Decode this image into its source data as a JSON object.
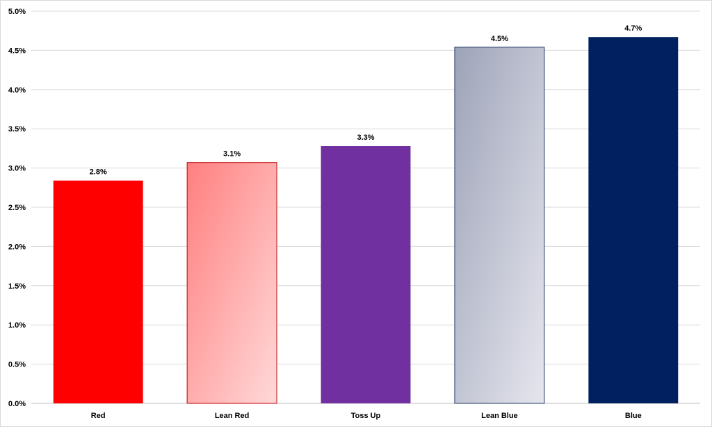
{
  "chart_data": {
    "type": "bar",
    "title": "",
    "xlabel": "",
    "ylabel": "",
    "ylim": [
      0,
      5
    ],
    "ytick_step": 0.5,
    "y_format": "percent_one_decimal",
    "grid": true,
    "legend": "none",
    "categories": [
      "Red",
      "Lean Red",
      "Toss Up",
      "Lean Blue",
      "Blue"
    ],
    "values": [
      2.84,
      3.07,
      3.28,
      4.54,
      4.67
    ],
    "data_labels": [
      "2.8%",
      "3.1%",
      "3.3%",
      "4.5%",
      "4.7%"
    ],
    "yticks": [
      "0.0%",
      "0.5%",
      "1.0%",
      "1.5%",
      "2.0%",
      "2.5%",
      "3.0%",
      "3.5%",
      "4.0%",
      "4.5%",
      "5.0%"
    ],
    "colors": {
      "Red": "#ff0000",
      "Lean Red": {
        "gradient": [
          "#ff7f7f",
          "#ffd9d9"
        ],
        "border": "#c00000"
      },
      "Toss Up": "#7030a0",
      "Lean Blue": {
        "gradient": [
          "#9da3b8",
          "#e6e6ee"
        ],
        "border": "#203864"
      },
      "Blue": "#002060"
    }
  }
}
